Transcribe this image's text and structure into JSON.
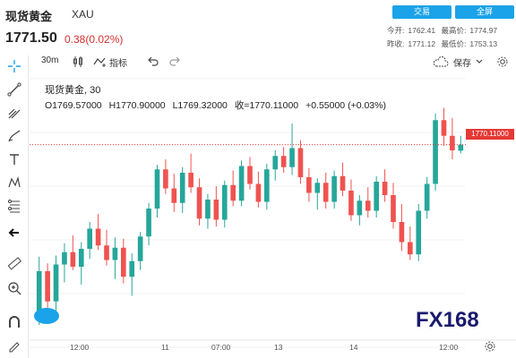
{
  "header": {
    "title": "现货黄金",
    "symbol": "XAU",
    "price": "1771.50",
    "change": "0.38(0.02%)",
    "trade_button": "交易",
    "fullscreen_button": "全屏",
    "stats_row1": [
      {
        "label": "今开:",
        "value": "1762.41"
      },
      {
        "label": "最高价:",
        "value": "1774.97"
      }
    ],
    "stats_row2": [
      {
        "label": "昨收:",
        "value": "1771.12"
      },
      {
        "label": "最低价:",
        "value": "1753.13"
      }
    ]
  },
  "toolbar": {
    "interval": "30m",
    "indicators": "指标",
    "save": "保存"
  },
  "legend": {
    "name": "现货黄金, 30",
    "open": "O1769.57000",
    "high": "H1770.90000",
    "low": "L1769.32000",
    "close": "收=1770.11000",
    "change": "+0.55000 (+0.03%)"
  },
  "price_label": "1770.11000",
  "xaxis": [
    "12:00",
    "11",
    "07:00",
    "13",
    "14",
    "12:00"
  ],
  "watermark": "FX168",
  "colors": {
    "up": "#26a69a",
    "down": "#ef5350",
    "accent": "#1aa3e8",
    "priceline": "#e53935"
  },
  "chart_data": {
    "type": "candlestick",
    "symbol": "XAU",
    "interval": "30m",
    "last": 1770.11,
    "ylim": [
      1752,
      1776
    ],
    "candles": [
      [
        1755.2,
        1760.1,
        1754.0,
        1758.8
      ],
      [
        1758.8,
        1759.5,
        1755.5,
        1756.1
      ],
      [
        1756.1,
        1760.2,
        1755.0,
        1759.4
      ],
      [
        1759.4,
        1761.3,
        1757.8,
        1760.5
      ],
      [
        1760.5,
        1762.0,
        1758.9,
        1759.2
      ],
      [
        1759.2,
        1761.4,
        1757.6,
        1760.8
      ],
      [
        1760.8,
        1763.2,
        1759.9,
        1762.6
      ],
      [
        1762.6,
        1763.9,
        1760.7,
        1761.1
      ],
      [
        1761.1,
        1762.5,
        1759.3,
        1759.8
      ],
      [
        1759.8,
        1761.8,
        1758.1,
        1760.9
      ],
      [
        1760.9,
        1761.7,
        1757.7,
        1758.3
      ],
      [
        1758.3,
        1760.4,
        1756.6,
        1759.7
      ],
      [
        1759.7,
        1762.3,
        1758.9,
        1761.9
      ],
      [
        1761.9,
        1764.9,
        1761.1,
        1764.4
      ],
      [
        1764.4,
        1768.3,
        1763.6,
        1767.9
      ],
      [
        1767.9,
        1768.8,
        1765.7,
        1766.2
      ],
      [
        1766.2,
        1767.5,
        1764.1,
        1764.9
      ],
      [
        1764.9,
        1768.1,
        1764.0,
        1767.6
      ],
      [
        1767.6,
        1769.3,
        1765.8,
        1766.3
      ],
      [
        1766.3,
        1767.1,
        1762.9,
        1763.5
      ],
      [
        1763.5,
        1765.7,
        1762.6,
        1765.2
      ],
      [
        1765.2,
        1766.4,
        1762.8,
        1763.4
      ],
      [
        1763.4,
        1766.9,
        1762.7,
        1766.5
      ],
      [
        1766.5,
        1767.8,
        1764.6,
        1765.1
      ],
      [
        1765.1,
        1768.7,
        1764.6,
        1768.2
      ],
      [
        1768.2,
        1769.0,
        1766.1,
        1766.6
      ],
      [
        1766.6,
        1767.7,
        1764.5,
        1765.0
      ],
      [
        1765.0,
        1768.4,
        1764.3,
        1767.9
      ],
      [
        1767.9,
        1769.6,
        1766.9,
        1769.1
      ],
      [
        1769.1,
        1769.9,
        1767.6,
        1768.1
      ],
      [
        1768.1,
        1772.0,
        1767.4,
        1769.8
      ],
      [
        1769.8,
        1770.5,
        1766.6,
        1767.2
      ],
      [
        1767.2,
        1768.0,
        1765.0,
        1765.8
      ],
      [
        1765.8,
        1767.1,
        1764.3,
        1766.7
      ],
      [
        1766.7,
        1767.6,
        1764.4,
        1765.0
      ],
      [
        1765.0,
        1767.8,
        1764.4,
        1767.3
      ],
      [
        1767.3,
        1768.5,
        1765.5,
        1766.0
      ],
      [
        1766.0,
        1767.0,
        1763.3,
        1763.8
      ],
      [
        1763.8,
        1765.6,
        1762.9,
        1765.1
      ],
      [
        1765.1,
        1766.3,
        1763.6,
        1764.2
      ],
      [
        1764.2,
        1767.3,
        1763.6,
        1766.8
      ],
      [
        1766.8,
        1767.9,
        1765.0,
        1765.6
      ],
      [
        1765.6,
        1766.7,
        1762.6,
        1763.2
      ],
      [
        1763.2,
        1764.8,
        1760.6,
        1761.4
      ],
      [
        1761.4,
        1762.8,
        1759.8,
        1760.3
      ],
      [
        1760.3,
        1764.8,
        1759.7,
        1764.2
      ],
      [
        1764.2,
        1767.2,
        1763.5,
        1766.6
      ],
      [
        1766.6,
        1772.9,
        1766.0,
        1772.3
      ],
      [
        1772.3,
        1773.4,
        1770.0,
        1770.9
      ],
      [
        1770.9,
        1772.5,
        1768.8,
        1769.6
      ],
      [
        1769.57,
        1770.9,
        1769.32,
        1770.11
      ]
    ]
  }
}
